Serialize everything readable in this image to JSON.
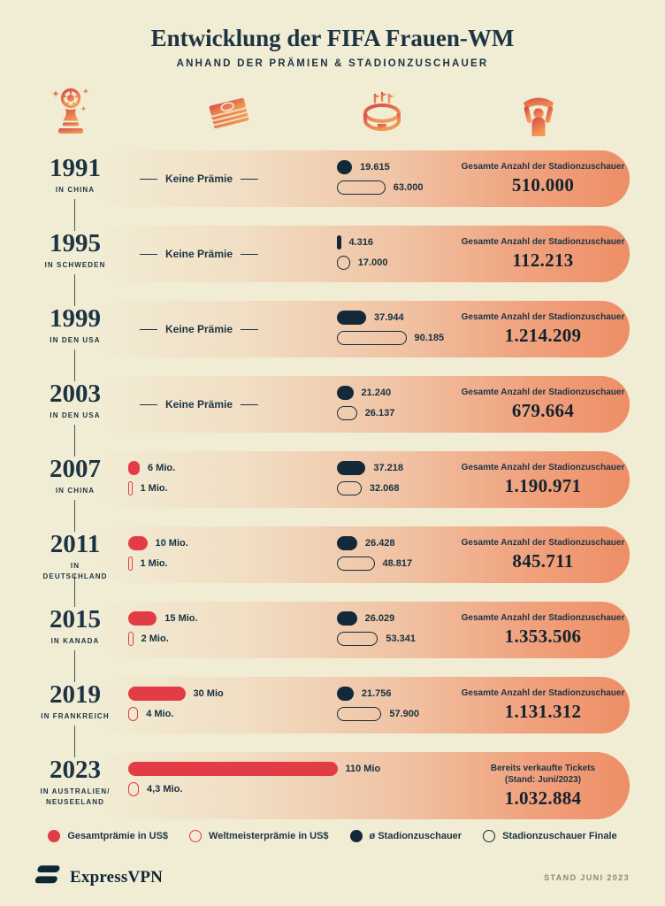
{
  "title": "Entwicklung der FIFA Frauen-WM",
  "subtitle": "ANHAND DER PRÄMIEN & STADIONZUSCHAUER",
  "no_prize_label": "Keine Prämie",
  "colors": {
    "cream": "#f1ecd4",
    "navy": "#13293a",
    "text_navy": "#1d3343",
    "red": "#e23c47",
    "row_orange": "#f0936c",
    "footer_note": "#8e8a6f"
  },
  "header_icons": [
    "trophy-icon",
    "money-icon",
    "stadium-icon",
    "fan-icon"
  ],
  "rows": [
    {
      "year": "1991",
      "location": "IN CHINA",
      "prize": null,
      "attendance": {
        "avg": 19615,
        "avg_label": "19.615",
        "final": 63000,
        "final_label": "63.000"
      },
      "total_caption": "Gesamte Anzahl der Stadionzuschauer",
      "total_caption2": "",
      "total": "510.000"
    },
    {
      "year": "1995",
      "location": "IN SCHWEDEN",
      "prize": null,
      "attendance": {
        "avg": 4316,
        "avg_label": "4.316",
        "final": 17000,
        "final_label": "17.000"
      },
      "total_caption": "Gesamte Anzahl der Stadionzuschauer",
      "total_caption2": "",
      "total": "112.213"
    },
    {
      "year": "1999",
      "location": "IN DEN USA",
      "prize": null,
      "attendance": {
        "avg": 37944,
        "avg_label": "37.944",
        "final": 90185,
        "final_label": "90.185"
      },
      "total_caption": "Gesamte Anzahl der Stadionzuschauer",
      "total_caption2": "",
      "total": "1.214.209"
    },
    {
      "year": "2003",
      "location": "IN DEN USA",
      "prize": null,
      "attendance": {
        "avg": 21240,
        "avg_label": "21.240",
        "final": 26137,
        "final_label": "26.137"
      },
      "total_caption": "Gesamte Anzahl der Stadionzuschauer",
      "total_caption2": "",
      "total": "679.664"
    },
    {
      "year": "2007",
      "location": "IN CHINA",
      "prize": {
        "total": 6,
        "total_label": "6 Mio.",
        "winner": 1,
        "winner_label": "1 Mio."
      },
      "attendance": {
        "avg": 37218,
        "avg_label": "37.218",
        "final": 32068,
        "final_label": "32.068"
      },
      "total_caption": "Gesamte Anzahl der Stadionzuschauer",
      "total_caption2": "",
      "total": "1.190.971"
    },
    {
      "year": "2011",
      "location": "IN DEUTSCHLAND",
      "prize": {
        "total": 10,
        "total_label": "10 Mio.",
        "winner": 1,
        "winner_label": "1 Mio."
      },
      "attendance": {
        "avg": 26428,
        "avg_label": "26.428",
        "final": 48817,
        "final_label": "48.817"
      },
      "total_caption": "Gesamte Anzahl der Stadionzuschauer",
      "total_caption2": "",
      "total": "845.711"
    },
    {
      "year": "2015",
      "location": "IN KANADA",
      "prize": {
        "total": 15,
        "total_label": "15 Mio.",
        "winner": 2,
        "winner_label": "2 Mio."
      },
      "attendance": {
        "avg": 26029,
        "avg_label": "26.029",
        "final": 53341,
        "final_label": "53.341"
      },
      "total_caption": "Gesamte Anzahl der Stadionzuschauer",
      "total_caption2": "",
      "total": "1.353.506"
    },
    {
      "year": "2019",
      "location": "IN FRANKREICH",
      "prize": {
        "total": 30,
        "total_label": "30 Mio",
        "winner": 4,
        "winner_label": "4 Mio."
      },
      "attendance": {
        "avg": 21756,
        "avg_label": "21.756",
        "final": 57900,
        "final_label": "57.900"
      },
      "total_caption": "Gesamte Anzahl der Stadionzuschauer",
      "total_caption2": "",
      "total": "1.131.312"
    },
    {
      "year": "2023",
      "location": "IN AUSTRALIEN/ NEUSEELAND",
      "prize": {
        "total": 110,
        "total_label": "110 Mio",
        "winner": 4.3,
        "winner_label": "4,3 Mio."
      },
      "attendance": null,
      "total_caption": "Bereits verkaufte Tickets",
      "total_caption2": "(Stand: Juni/2023)",
      "total": "1.032.884"
    }
  ],
  "legend": {
    "items": [
      {
        "label": "Gesamtprämie in US$",
        "swatch": "red-filled"
      },
      {
        "label": "Weltmeisterprämie in US$",
        "swatch": "red-outline"
      },
      {
        "label": "ø Stadionzuschauer",
        "swatch": "navy-filled"
      },
      {
        "label": "Stadionzuschauer Finale",
        "swatch": "navy-outline"
      }
    ]
  },
  "footer": {
    "brand": "ExpressVPN",
    "note": "STAND JUNI 2023"
  },
  "chart_data": {
    "type": "table",
    "title": "Entwicklung der FIFA Frauen-WM",
    "subtitle": "Anhand der Prämien & Stadionzuschauer",
    "categories": [
      "1991",
      "1995",
      "1999",
      "2003",
      "2007",
      "2011",
      "2015",
      "2019",
      "2023"
    ],
    "hosts": [
      "China",
      "Schweden",
      "USA",
      "USA",
      "China",
      "Deutschland",
      "Kanada",
      "Frankreich",
      "Australien/Neuseeland"
    ],
    "series": [
      {
        "name": "Gesamtprämie in US$ (Mio.)",
        "values": [
          null,
          null,
          null,
          null,
          6,
          10,
          15,
          30,
          110
        ]
      },
      {
        "name": "Weltmeisterprämie in US$ (Mio.)",
        "values": [
          null,
          null,
          null,
          null,
          1,
          1,
          2,
          4,
          4.3
        ]
      },
      {
        "name": "ø Stadionzuschauer",
        "values": [
          19615,
          4316,
          37944,
          21240,
          37218,
          26428,
          26029,
          21756,
          null
        ]
      },
      {
        "name": "Stadionzuschauer Finale",
        "values": [
          63000,
          17000,
          90185,
          26137,
          32068,
          48817,
          53341,
          57900,
          null
        ]
      },
      {
        "name": "Gesamte Anzahl der Stadionzuschauer",
        "values": [
          510000,
          112213,
          1214209,
          679664,
          1190971,
          845711,
          1353506,
          1131312,
          1032884
        ]
      }
    ],
    "notes": [
      "1991–2003: Keine Prämie",
      "2023: Bereits verkaufte Tickets (Stand: Juni/2023)"
    ],
    "legend_position": "bottom"
  }
}
